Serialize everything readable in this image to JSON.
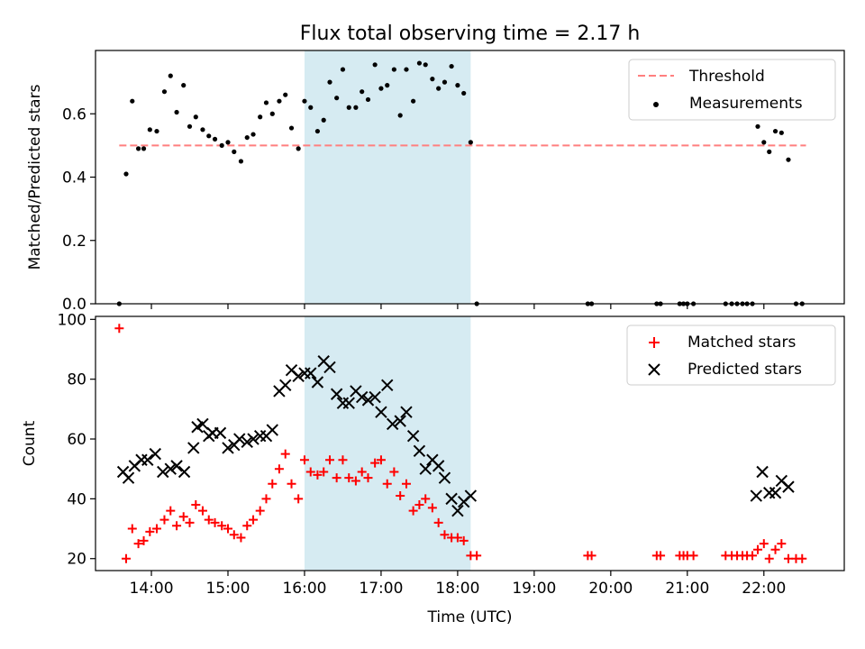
{
  "chart_data": [
    {
      "type": "scatter",
      "title": "Flux total observing time = 2.17 h",
      "ylabel": "Matched/Predicted stars",
      "xlabel": "",
      "xlim": [
        13.27,
        23.05
      ],
      "ylim": [
        0,
        0.8
      ],
      "yticks": [
        "0.0",
        "0.2",
        "0.4",
        "0.6"
      ],
      "yticks_values": [
        0.0,
        0.2,
        0.4,
        0.6
      ],
      "xtick_hours": [
        14,
        15,
        16,
        17,
        18,
        19,
        20,
        21,
        22
      ],
      "legend_position": "upper right",
      "shaded_span": [
        16.0,
        18.17
      ],
      "shade_color": "#add8e6",
      "threshold": {
        "name": "Threshold",
        "x": [
          13.58,
          22.55
        ],
        "y": 0.5,
        "color": "#ff7f7f",
        "style": "dashed"
      },
      "series": [
        {
          "name": "Measurements",
          "marker": "dot",
          "color": "#000000",
          "x": [
            13.58,
            13.67,
            13.75,
            13.83,
            13.9,
            13.98,
            14.07,
            14.17,
            14.25,
            14.33,
            14.42,
            14.5,
            14.58,
            14.67,
            14.75,
            14.83,
            14.92,
            15.0,
            15.08,
            15.17,
            15.25,
            15.33,
            15.42,
            15.5,
            15.58,
            15.67,
            15.75,
            15.83,
            15.92,
            16.0,
            16.08,
            16.17,
            16.25,
            16.33,
            16.42,
            16.5,
            16.58,
            16.67,
            16.75,
            16.83,
            16.92,
            17.0,
            17.08,
            17.17,
            17.25,
            17.33,
            17.42,
            17.5,
            17.58,
            17.67,
            17.75,
            17.83,
            17.92,
            18.0,
            18.08,
            18.17,
            18.25,
            19.7,
            19.75,
            20.6,
            20.65,
            20.9,
            20.95,
            21.0,
            21.08,
            21.5,
            21.58,
            21.65,
            21.72,
            21.78,
            21.85,
            21.92,
            22.0,
            22.07,
            22.15,
            22.23,
            22.32,
            22.42,
            22.5
          ],
          "y": [
            0.0,
            0.41,
            0.64,
            0.49,
            0.49,
            0.55,
            0.545,
            0.67,
            0.72,
            0.605,
            0.69,
            0.56,
            0.59,
            0.55,
            0.53,
            0.52,
            0.5,
            0.51,
            0.48,
            0.45,
            0.525,
            0.535,
            0.59,
            0.635,
            0.6,
            0.64,
            0.66,
            0.555,
            0.49,
            0.64,
            0.62,
            0.545,
            0.58,
            0.7,
            0.65,
            0.74,
            0.62,
            0.62,
            0.67,
            0.645,
            0.755,
            0.68,
            0.69,
            0.74,
            0.595,
            0.74,
            0.64,
            0.76,
            0.755,
            0.71,
            0.68,
            0.7,
            0.75,
            0.69,
            0.665,
            0.51,
            0.0,
            0.0,
            0.0,
            0.0,
            0.0,
            0.0,
            0.0,
            0.0,
            0.0,
            0.0,
            0.0,
            0.0,
            0.0,
            0.0,
            0.0,
            0.56,
            0.51,
            0.48,
            0.545,
            0.54,
            0.455,
            0.0,
            0.0
          ]
        }
      ]
    },
    {
      "type": "scatter",
      "title": "",
      "ylabel": "Count",
      "xlabel": "Time (UTC)",
      "xlim": [
        13.27,
        23.05
      ],
      "ylim": [
        16,
        101
      ],
      "yticks": [
        "20",
        "40",
        "60",
        "80",
        "100"
      ],
      "yticks_values": [
        20,
        40,
        60,
        80,
        100
      ],
      "xticks": [
        "14:00",
        "15:00",
        "16:00",
        "17:00",
        "18:00",
        "19:00",
        "20:00",
        "21:00",
        "22:00"
      ],
      "xtick_hours": [
        14,
        15,
        16,
        17,
        18,
        19,
        20,
        21,
        22
      ],
      "legend_position": "upper right",
      "shaded_span": [
        16.0,
        18.17
      ],
      "shade_color": "#add8e6",
      "series": [
        {
          "name": "Matched stars",
          "marker": "plus",
          "color": "#ff0000",
          "x": [
            13.58,
            13.67,
            13.75,
            13.83,
            13.9,
            13.98,
            14.07,
            14.17,
            14.25,
            14.33,
            14.42,
            14.5,
            14.58,
            14.67,
            14.75,
            14.83,
            14.92,
            15.0,
            15.08,
            15.17,
            15.25,
            15.33,
            15.42,
            15.5,
            15.58,
            15.67,
            15.75,
            15.83,
            15.92,
            16.0,
            16.08,
            16.17,
            16.25,
            16.33,
            16.42,
            16.5,
            16.58,
            16.67,
            16.75,
            16.83,
            16.92,
            17.0,
            17.08,
            17.17,
            17.25,
            17.33,
            17.42,
            17.5,
            17.58,
            17.67,
            17.75,
            17.83,
            17.92,
            18.0,
            18.08,
            18.17,
            18.25,
            19.7,
            19.75,
            20.6,
            20.65,
            20.9,
            20.95,
            21.0,
            21.08,
            21.5,
            21.58,
            21.65,
            21.72,
            21.78,
            21.85,
            21.92,
            22.0,
            22.07,
            22.15,
            22.23,
            22.32,
            22.42,
            22.5
          ],
          "y": [
            97,
            20,
            30,
            25,
            26,
            29,
            30,
            33,
            36,
            31,
            34,
            32,
            38,
            36,
            33,
            32,
            31,
            30,
            28,
            27,
            31,
            33,
            36,
            40,
            45,
            50,
            55,
            45,
            40,
            53,
            49,
            48,
            49,
            53,
            47,
            53,
            47,
            46,
            49,
            47,
            52,
            53,
            45,
            49,
            41,
            45,
            36,
            38,
            40,
            37,
            32,
            28,
            27,
            27,
            26,
            21,
            21,
            21,
            21,
            21,
            21,
            21,
            21,
            21,
            21,
            21,
            21,
            21,
            21,
            21,
            21,
            23,
            25,
            20,
            23,
            25,
            20,
            20,
            20
          ]
        },
        {
          "name": "Predicted stars",
          "marker": "x",
          "color": "#000000",
          "x": [
            13.63,
            13.7,
            13.78,
            13.87,
            13.95,
            14.05,
            14.15,
            14.25,
            14.33,
            14.43,
            14.55,
            14.6,
            14.67,
            14.75,
            14.8,
            14.9,
            15.0,
            15.08,
            15.15,
            15.25,
            15.33,
            15.42,
            15.5,
            15.58,
            15.67,
            15.75,
            15.83,
            15.92,
            16.0,
            16.08,
            16.17,
            16.25,
            16.33,
            16.42,
            16.5,
            16.58,
            16.67,
            16.75,
            16.83,
            16.92,
            17.0,
            17.08,
            17.15,
            17.25,
            17.33,
            17.42,
            17.5,
            17.58,
            17.67,
            17.75,
            17.83,
            17.92,
            18.0,
            18.08,
            18.17,
            21.9,
            21.98,
            22.07,
            22.15,
            22.23,
            22.32
          ],
          "y": [
            49,
            47,
            51,
            53,
            53,
            55,
            49,
            50,
            51,
            49,
            57,
            64,
            65,
            61,
            62,
            62,
            57,
            58,
            60,
            59,
            60,
            61,
            61,
            63,
            76,
            78,
            83,
            81,
            82,
            82,
            79,
            86,
            84,
            75,
            72,
            72,
            76,
            74,
            73,
            74,
            69,
            78,
            65,
            66,
            69,
            61,
            56,
            50,
            53,
            51,
            47,
            40,
            36,
            39,
            41,
            41,
            49,
            42,
            42,
            46,
            44
          ]
        }
      ]
    }
  ]
}
